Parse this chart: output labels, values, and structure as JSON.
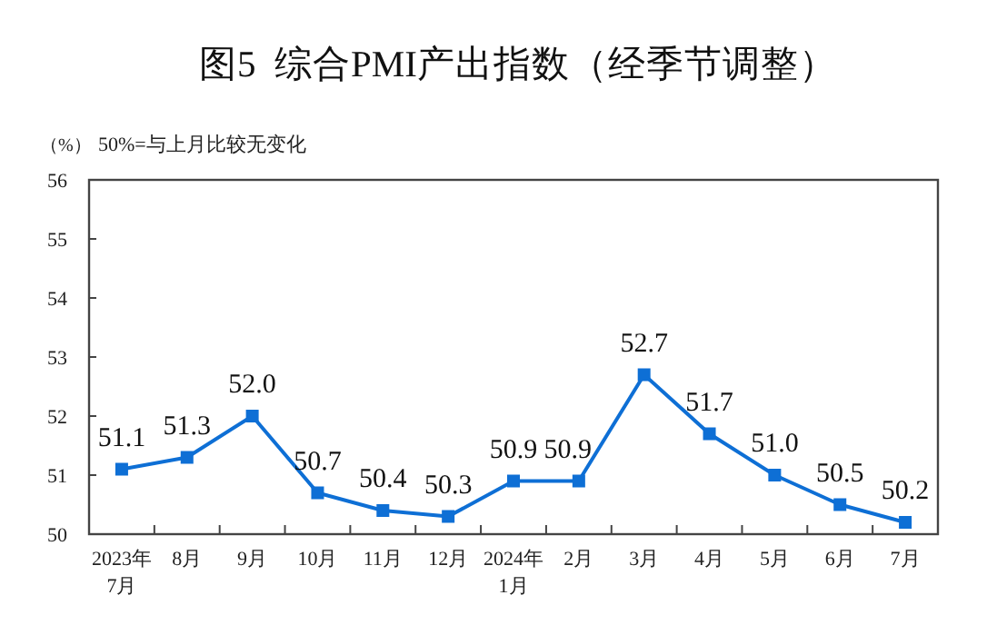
{
  "chart_data": {
    "type": "line",
    "title": "图5  综合PMI产出指数（经季节调整）",
    "ylabel": "（%）",
    "annotations": [
      "50%=与上月比较无变化"
    ],
    "categories": [
      "2023年\n7月",
      "8月",
      "9月",
      "10月",
      "11月",
      "12月",
      "2024年\n1月",
      "2月",
      "3月",
      "4月",
      "5月",
      "6月",
      "7月"
    ],
    "series": [
      {
        "color": "#0e6fd5",
        "values": [
          51.1,
          51.3,
          52.0,
          50.7,
          50.4,
          50.3,
          50.9,
          50.9,
          52.7,
          51.7,
          51.0,
          50.5,
          50.2
        ],
        "value_labels": [
          "51.1",
          "51.3",
          "52.0",
          "50.7",
          "50.4",
          "50.3",
          "50.9",
          "50.9",
          "52.7",
          "51.7",
          "51.0",
          "50.5",
          "50.2"
        ]
      }
    ],
    "ylim": [
      50,
      56
    ],
    "yticks": [
      50,
      51,
      52,
      53,
      54,
      55,
      56
    ],
    "marker": "square",
    "line_style": "solid",
    "grid": false
  }
}
